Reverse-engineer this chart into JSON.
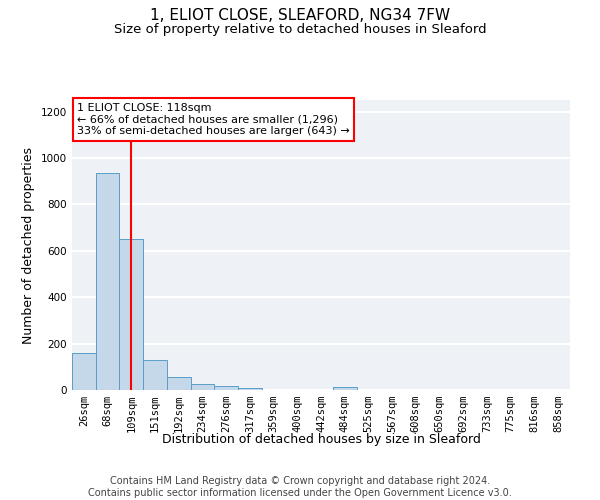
{
  "title_line1": "1, ELIOT CLOSE, SLEAFORD, NG34 7FW",
  "title_line2": "Size of property relative to detached houses in Sleaford",
  "xlabel": "Distribution of detached houses by size in Sleaford",
  "ylabel": "Number of detached properties",
  "footnote": "Contains HM Land Registry data © Crown copyright and database right 2024.\nContains public sector information licensed under the Open Government Licence v3.0.",
  "bin_labels": [
    "26sqm",
    "68sqm",
    "109sqm",
    "151sqm",
    "192sqm",
    "234sqm",
    "276sqm",
    "317sqm",
    "359sqm",
    "400sqm",
    "442sqm",
    "484sqm",
    "525sqm",
    "567sqm",
    "608sqm",
    "650sqm",
    "692sqm",
    "733sqm",
    "775sqm",
    "816sqm",
    "858sqm"
  ],
  "bar_values": [
    160,
    935,
    650,
    130,
    58,
    28,
    18,
    10,
    0,
    0,
    0,
    15,
    0,
    0,
    0,
    0,
    0,
    0,
    0,
    0,
    0
  ],
  "bar_color": "#c5d8ea",
  "bar_edge_color": "#5a9ec9",
  "vline_x": 2,
  "annotation_text": "1 ELIOT CLOSE: 118sqm\n← 66% of detached houses are smaller (1,296)\n33% of semi-detached houses are larger (643) →",
  "annotation_box_color": "white",
  "annotation_box_edgecolor": "red",
  "vline_color": "red",
  "ylim": [
    0,
    1250
  ],
  "yticks": [
    0,
    200,
    400,
    600,
    800,
    1000,
    1200
  ],
  "background_color": "#eef2f7",
  "grid_color": "white",
  "title_fontsize": 11,
  "subtitle_fontsize": 9.5,
  "axis_label_fontsize": 9,
  "tick_fontsize": 7.5,
  "footnote_fontsize": 7
}
